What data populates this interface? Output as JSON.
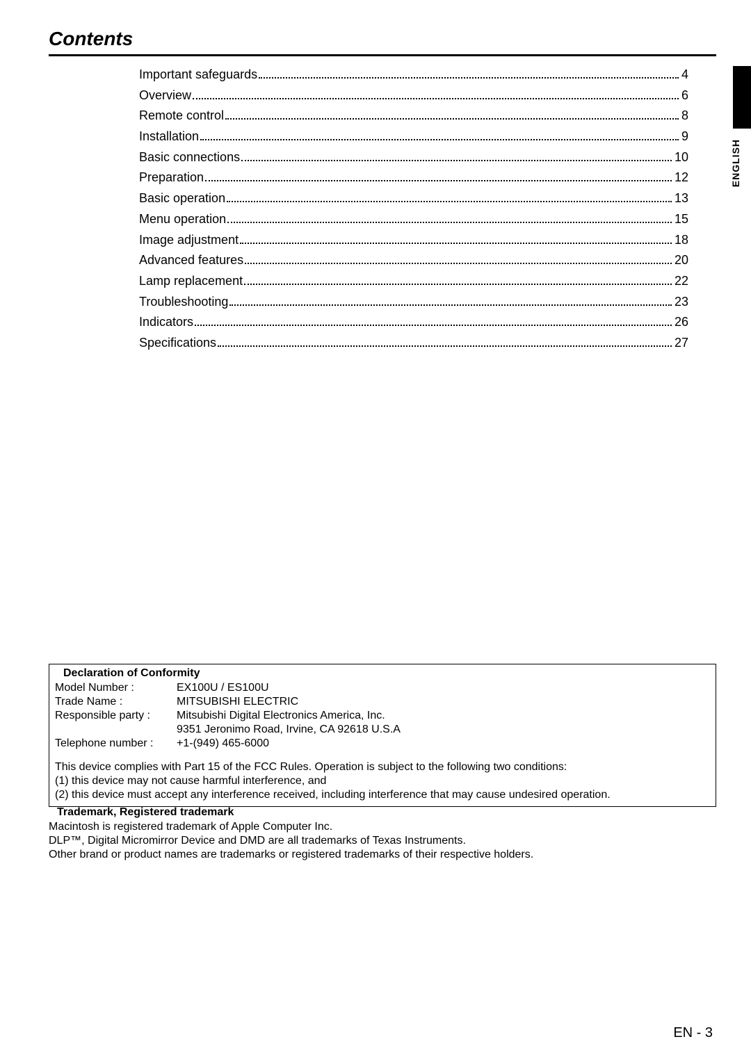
{
  "title": "Contents",
  "language_tab": "ENGLISH",
  "toc": [
    {
      "label": "Important safeguards",
      "page": "4"
    },
    {
      "label": "Overview",
      "page": "6"
    },
    {
      "label": "Remote control",
      "page": "8"
    },
    {
      "label": "Installation",
      "page": "9"
    },
    {
      "label": "Basic connections",
      "page": "10"
    },
    {
      "label": "Preparation",
      "page": "12"
    },
    {
      "label": "Basic operation",
      "page": "13"
    },
    {
      "label": "Menu operation",
      "page": "15"
    },
    {
      "label": "Image adjustment",
      "page": "18"
    },
    {
      "label": "Advanced features",
      "page": "20"
    },
    {
      "label": "Lamp replacement",
      "page": "22"
    },
    {
      "label": "Troubleshooting",
      "page": "23"
    },
    {
      "label": "Indicators",
      "page": "26"
    },
    {
      "label": "Specifications",
      "page": "27"
    }
  ],
  "declaration": {
    "heading": "Declaration of Conformity",
    "rows": [
      {
        "key": "Model Number :",
        "val": "EX100U / ES100U"
      },
      {
        "key": "Trade Name :",
        "val": "MITSUBISHI ELECTRIC"
      },
      {
        "key": "Responsible party :",
        "val": "Mitsubishi Digital Electronics America, Inc."
      },
      {
        "key": "",
        "val": "9351 Jeronimo Road, Irvine, CA 92618 U.S.A"
      },
      {
        "key": "Telephone number :",
        "val": "+1-(949) 465-6000"
      }
    ],
    "note1": "This device complies with Part 15 of the FCC Rules. Operation is subject to the following two conditions:",
    "note2": "(1) this device may not cause harmful interference, and",
    "note3": "(2) this device must accept any interference received, including interference that may cause undesired operation."
  },
  "trademark": {
    "heading": "Trademark, Registered trademark",
    "line1": "Macintosh is registered trademark of Apple Computer Inc.",
    "line2": "DLP™, Digital Micromirror Device and DMD are all trademarks of Texas Instruments.",
    "line3": "Other brand or product names are trademarks or registered trademarks of their respective holders."
  },
  "page_number": "EN - 3"
}
